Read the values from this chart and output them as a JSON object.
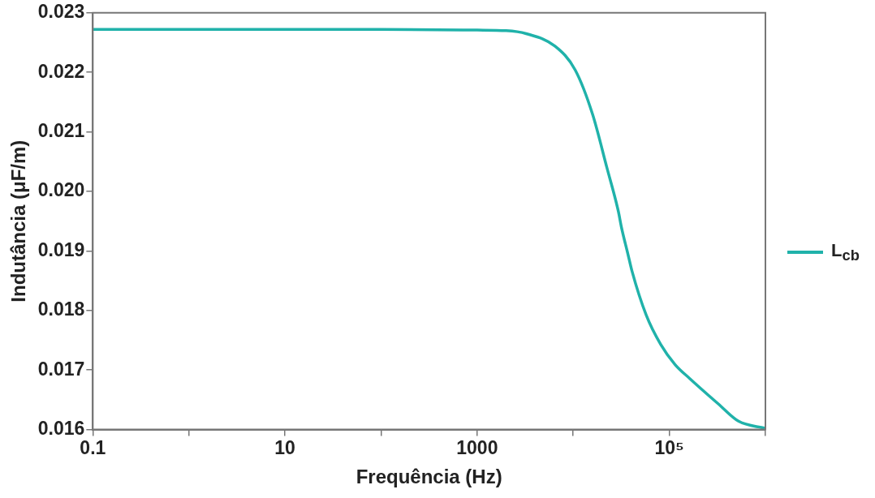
{
  "chart_data": {
    "type": "line",
    "xlabel": "Frequência (Hz)",
    "ylabel": "Indutância (μF/m)",
    "log": "x",
    "legend": "right",
    "marker": "none",
    "x": [
      0.1,
      1,
      10,
      100,
      1000,
      2000,
      3236,
      6457,
      10471,
      15849,
      22387,
      29512,
      31623,
      37154,
      40738,
      57544,
      81283,
      114815,
      162181,
      323594,
      524807,
      1000000
    ],
    "series": [
      {
        "name": "L$_{cb}$",
        "color": "#20b2aa",
        "values": [
          0.02272,
          0.02272,
          0.02272,
          0.02272,
          0.02271,
          0.0227,
          0.02265,
          0.02244,
          0.02204,
          0.0213,
          0.0204,
          0.01966,
          0.01941,
          0.01894,
          0.01867,
          0.01792,
          0.01743,
          0.01709,
          0.01686,
          0.01643,
          0.01614,
          0.01602
        ]
      }
    ],
    "xlim": [
      0.1,
      1000000
    ],
    "xticks": [
      0.1,
      {
        "value": 1,
        "label": null
      },
      10,
      {
        "value": 100,
        "label": null
      },
      1000,
      {
        "value": 10000,
        "label": null
      },
      {
        "value": 100000,
        "label": "10⁵"
      },
      {
        "value": 1000000,
        "label": null
      }
    ],
    "ylim": [
      0.016,
      0.023
    ],
    "yticks": [
      0.016,
      0.017,
      0.018,
      0.019,
      {
        "value": 0.02,
        "label": "0.020"
      },
      0.021,
      0.022,
      0.023
    ]
  }
}
